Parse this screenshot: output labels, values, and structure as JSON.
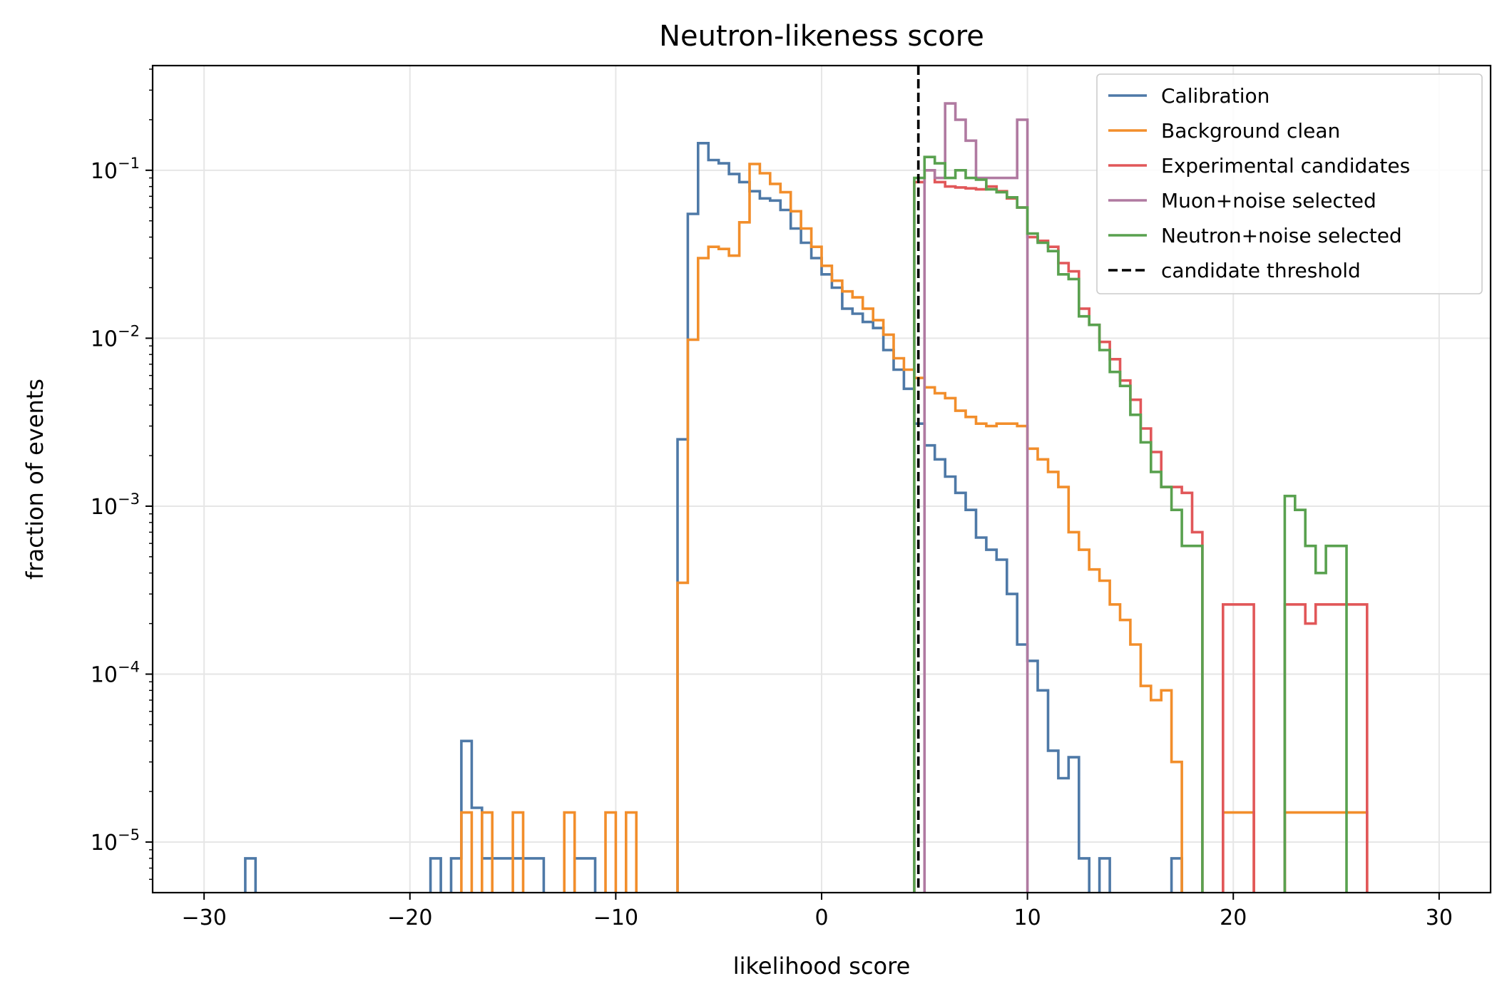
{
  "chart_data": {
    "type": "line",
    "title": "Neutron-likeness score",
    "xlabel": "likelihood score",
    "ylabel": "fraction of events",
    "xlim": [
      -32.5,
      32.5
    ],
    "ylim": [
      5e-06,
      0.42
    ],
    "yscale": "log",
    "xticks": [
      -30,
      -20,
      -10,
      0,
      10,
      20,
      30
    ],
    "xtick_labels": [
      "−30",
      "−20",
      "−10",
      "0",
      "10",
      "20",
      "30"
    ],
    "yticks": [
      1e-05,
      0.0001,
      0.001,
      0.01,
      0.1
    ],
    "ytick_labels": [
      {
        "base": "10",
        "exp": "−5"
      },
      {
        "base": "10",
        "exp": "−4"
      },
      {
        "base": "10",
        "exp": "−3"
      },
      {
        "base": "10",
        "exp": "−2"
      },
      {
        "base": "10",
        "exp": "−1"
      }
    ],
    "grid": true,
    "legend_position": "top-right",
    "threshold": {
      "name": "candidate threshold",
      "x": 4.7,
      "color": "#000000"
    },
    "series": [
      {
        "name": "Calibration",
        "color": "#4e79a7",
        "bins": [
          [
            -28.0,
            -27.5,
            8e-06
          ],
          [
            -19.0,
            -18.5,
            8e-06
          ],
          [
            -18.5,
            -18.0,
            0
          ],
          [
            -18.0,
            -17.5,
            8e-06
          ],
          [
            -17.5,
            -17.0,
            4e-05
          ],
          [
            -17.0,
            -16.5,
            1.6e-05
          ],
          [
            -16.5,
            -13.5,
            8e-06
          ],
          [
            -12.0,
            -11.0,
            8e-06
          ],
          [
            -7.0,
            -6.5,
            0.0025
          ],
          [
            -6.5,
            -6.0,
            0.055
          ],
          [
            -6.0,
            -5.5,
            0.145
          ],
          [
            -5.5,
            -5.0,
            0.115
          ],
          [
            -5.0,
            -4.5,
            0.11
          ],
          [
            -4.5,
            -4.0,
            0.095
          ],
          [
            -4.0,
            -3.5,
            0.085
          ],
          [
            -3.5,
            -3.0,
            0.075
          ],
          [
            -3.0,
            -2.5,
            0.068
          ],
          [
            -2.5,
            -2.0,
            0.066
          ],
          [
            -2.0,
            -1.5,
            0.058
          ],
          [
            -1.5,
            -1.0,
            0.045
          ],
          [
            -1.0,
            -0.5,
            0.037
          ],
          [
            -0.5,
            0.0,
            0.03
          ],
          [
            0.0,
            0.5,
            0.024
          ],
          [
            0.5,
            1.0,
            0.02
          ],
          [
            1.0,
            1.5,
            0.015
          ],
          [
            1.5,
            2.0,
            0.014
          ],
          [
            2.0,
            2.5,
            0.0125
          ],
          [
            2.5,
            3.0,
            0.0115
          ],
          [
            3.0,
            3.5,
            0.0085
          ],
          [
            3.5,
            4.0,
            0.0065
          ],
          [
            4.0,
            4.5,
            0.005
          ],
          [
            4.5,
            5.0,
            0.0031
          ],
          [
            5.0,
            5.5,
            0.0023
          ],
          [
            5.5,
            6.0,
            0.0019
          ],
          [
            6.0,
            6.5,
            0.0015
          ],
          [
            6.5,
            7.0,
            0.0012
          ],
          [
            7.0,
            7.5,
            0.00095
          ],
          [
            7.5,
            8.0,
            0.00065
          ],
          [
            8.0,
            8.5,
            0.00055
          ],
          [
            8.5,
            9.0,
            0.00048
          ],
          [
            9.0,
            9.5,
            0.0003
          ],
          [
            9.5,
            10.0,
            0.00015
          ],
          [
            10.0,
            10.5,
            0.00012
          ],
          [
            10.5,
            11.0,
            8e-05
          ],
          [
            11.0,
            11.5,
            3.5e-05
          ],
          [
            11.5,
            12.0,
            2.4e-05
          ],
          [
            12.0,
            12.5,
            3.2e-05
          ],
          [
            12.5,
            13.0,
            8e-06
          ],
          [
            13.0,
            13.5,
            0
          ],
          [
            13.5,
            14.0,
            8e-06
          ],
          [
            17.0,
            17.5,
            8e-06
          ]
        ]
      },
      {
        "name": "Background clean",
        "color": "#f28e2b",
        "bins": [
          [
            -17.5,
            -17.0,
            1.5e-05
          ],
          [
            -17.0,
            -16.5,
            0
          ],
          [
            -16.5,
            -16.0,
            1.5e-05
          ],
          [
            -15.0,
            -14.5,
            1.5e-05
          ],
          [
            -12.5,
            -12.0,
            1.5e-05
          ],
          [
            -10.5,
            -10.0,
            1.5e-05
          ],
          [
            -10.0,
            -9.5,
            0
          ],
          [
            -9.5,
            -9.0,
            1.5e-05
          ],
          [
            -7.0,
            -6.5,
            0.00035
          ],
          [
            -6.5,
            -6.0,
            0.0098
          ],
          [
            -6.0,
            -5.5,
            0.03
          ],
          [
            -5.5,
            -5.0,
            0.035
          ],
          [
            -5.0,
            -4.5,
            0.034
          ],
          [
            -4.5,
            -4.0,
            0.031
          ],
          [
            -4.0,
            -3.5,
            0.049
          ],
          [
            -3.5,
            -3.0,
            0.109
          ],
          [
            -3.0,
            -2.5,
            0.096
          ],
          [
            -2.5,
            -2.0,
            0.083
          ],
          [
            -2.0,
            -1.5,
            0.074
          ],
          [
            -1.5,
            -1.0,
            0.057
          ],
          [
            -1.0,
            -0.5,
            0.045
          ],
          [
            -0.5,
            0.0,
            0.035
          ],
          [
            0.0,
            0.5,
            0.027
          ],
          [
            0.5,
            1.0,
            0.022
          ],
          [
            1.0,
            1.5,
            0.019
          ],
          [
            1.5,
            2.0,
            0.0175
          ],
          [
            2.0,
            2.5,
            0.015
          ],
          [
            2.5,
            3.0,
            0.0128
          ],
          [
            3.0,
            3.5,
            0.0105
          ],
          [
            3.5,
            4.0,
            0.0076
          ],
          [
            4.0,
            4.5,
            0.0065
          ],
          [
            4.5,
            5.0,
            0.0058
          ],
          [
            5.0,
            5.5,
            0.0051
          ],
          [
            5.5,
            6.0,
            0.0047
          ],
          [
            6.0,
            6.5,
            0.0044
          ],
          [
            6.5,
            7.0,
            0.0037
          ],
          [
            7.0,
            7.5,
            0.0034
          ],
          [
            7.5,
            8.0,
            0.0031
          ],
          [
            8.0,
            8.5,
            0.003
          ],
          [
            8.5,
            9.0,
            0.0031
          ],
          [
            9.0,
            9.5,
            0.0031
          ],
          [
            9.5,
            10.0,
            0.003
          ],
          [
            10.0,
            10.5,
            0.0022
          ],
          [
            10.5,
            11.0,
            0.0019
          ],
          [
            11.0,
            11.5,
            0.0016
          ],
          [
            11.5,
            12.0,
            0.0013
          ],
          [
            12.0,
            12.5,
            0.0007
          ],
          [
            12.5,
            13.0,
            0.00055
          ],
          [
            13.0,
            13.5,
            0.00042
          ],
          [
            13.5,
            14.0,
            0.00036
          ],
          [
            14.0,
            14.5,
            0.00026
          ],
          [
            14.5,
            15.0,
            0.00021
          ],
          [
            15.0,
            15.5,
            0.00015
          ],
          [
            15.5,
            16.0,
            8.5e-05
          ],
          [
            16.0,
            16.5,
            7e-05
          ],
          [
            16.5,
            17.0,
            8e-05
          ],
          [
            17.0,
            17.5,
            3e-05
          ],
          [
            19.5,
            21.0,
            1.5e-05
          ],
          [
            22.5,
            26.5,
            1.5e-05
          ]
        ]
      },
      {
        "name": "Experimental candidates",
        "color": "#e15759",
        "bins": [
          [
            4.5,
            5.0,
            0.085
          ],
          [
            5.0,
            5.5,
            0.1
          ],
          [
            5.5,
            6.0,
            0.085
          ],
          [
            6.0,
            6.5,
            0.08
          ],
          [
            6.5,
            7.0,
            0.079
          ],
          [
            7.0,
            7.5,
            0.078
          ],
          [
            7.5,
            8.0,
            0.077
          ],
          [
            8.0,
            8.5,
            0.08
          ],
          [
            8.5,
            9.0,
            0.075
          ],
          [
            9.0,
            9.5,
            0.068
          ],
          [
            9.5,
            10.0,
            0.06
          ],
          [
            10.0,
            10.5,
            0.04
          ],
          [
            10.5,
            11.0,
            0.038
          ],
          [
            11.0,
            11.5,
            0.035
          ],
          [
            11.5,
            12.0,
            0.028
          ],
          [
            12.0,
            12.5,
            0.025
          ],
          [
            12.5,
            13.0,
            0.015
          ],
          [
            13.0,
            13.5,
            0.012
          ],
          [
            13.5,
            14.0,
            0.0095
          ],
          [
            14.0,
            14.5,
            0.0075
          ],
          [
            14.5,
            15.0,
            0.0056
          ],
          [
            15.0,
            15.5,
            0.0043
          ],
          [
            15.5,
            16.0,
            0.0029
          ],
          [
            16.0,
            16.5,
            0.0021
          ],
          [
            16.5,
            17.0,
            0.0013
          ],
          [
            17.0,
            17.5,
            0.0013
          ],
          [
            17.5,
            18.0,
            0.0012
          ],
          [
            18.0,
            18.5,
            0.0007
          ],
          [
            19.5,
            21.0,
            0.00026
          ],
          [
            22.5,
            23.5,
            0.00026
          ],
          [
            23.5,
            24.0,
            0.0002
          ],
          [
            24.0,
            26.0,
            0.00026
          ],
          [
            26.0,
            26.5,
            0.00026
          ]
        ]
      },
      {
        "name": "Muon+noise selected",
        "color": "#b07aa1",
        "bins": [
          [
            5.0,
            5.5,
            0.1
          ],
          [
            5.5,
            6.0,
            0.09
          ],
          [
            6.0,
            6.5,
            0.25
          ],
          [
            6.5,
            7.0,
            0.2
          ],
          [
            7.0,
            7.5,
            0.15
          ],
          [
            7.5,
            8.0,
            0.09
          ],
          [
            8.0,
            8.5,
            0.09
          ],
          [
            8.5,
            9.0,
            0.09
          ],
          [
            9.0,
            9.5,
            0.09
          ],
          [
            9.5,
            10.0,
            0.2
          ]
        ]
      },
      {
        "name": "Neutron+noise selected",
        "color": "#59a14f",
        "bins": [
          [
            4.5,
            5.0,
            0.09
          ],
          [
            5.0,
            5.5,
            0.12
          ],
          [
            5.5,
            6.0,
            0.11
          ],
          [
            6.0,
            6.5,
            0.09
          ],
          [
            6.5,
            7.0,
            0.1
          ],
          [
            7.0,
            7.5,
            0.09
          ],
          [
            7.5,
            8.0,
            0.088
          ],
          [
            8.0,
            8.5,
            0.077
          ],
          [
            8.5,
            9.0,
            0.074
          ],
          [
            9.0,
            9.5,
            0.069
          ],
          [
            9.5,
            10.0,
            0.06
          ],
          [
            10.0,
            10.5,
            0.042
          ],
          [
            10.5,
            11.0,
            0.037
          ],
          [
            11.0,
            11.5,
            0.033
          ],
          [
            11.5,
            12.0,
            0.024
          ],
          [
            12.0,
            12.5,
            0.0225
          ],
          [
            12.5,
            13.0,
            0.0135
          ],
          [
            13.0,
            13.5,
            0.012
          ],
          [
            13.5,
            14.0,
            0.0085
          ],
          [
            14.0,
            14.5,
            0.0063
          ],
          [
            14.5,
            15.0,
            0.0052
          ],
          [
            15.0,
            15.5,
            0.0035
          ],
          [
            15.5,
            16.0,
            0.0024
          ],
          [
            16.0,
            16.5,
            0.0016
          ],
          [
            16.5,
            17.0,
            0.0013
          ],
          [
            17.0,
            17.5,
            0.00095
          ],
          [
            17.5,
            18.0,
            0.00058
          ],
          [
            18.0,
            18.5,
            0.00058
          ],
          [
            22.5,
            23.0,
            0.00115
          ],
          [
            23.0,
            23.5,
            0.00095
          ],
          [
            23.5,
            24.0,
            0.00058
          ],
          [
            24.0,
            24.5,
            0.0004
          ],
          [
            24.5,
            25.0,
            0.00058
          ],
          [
            25.0,
            25.5,
            0.00058
          ]
        ]
      }
    ]
  }
}
